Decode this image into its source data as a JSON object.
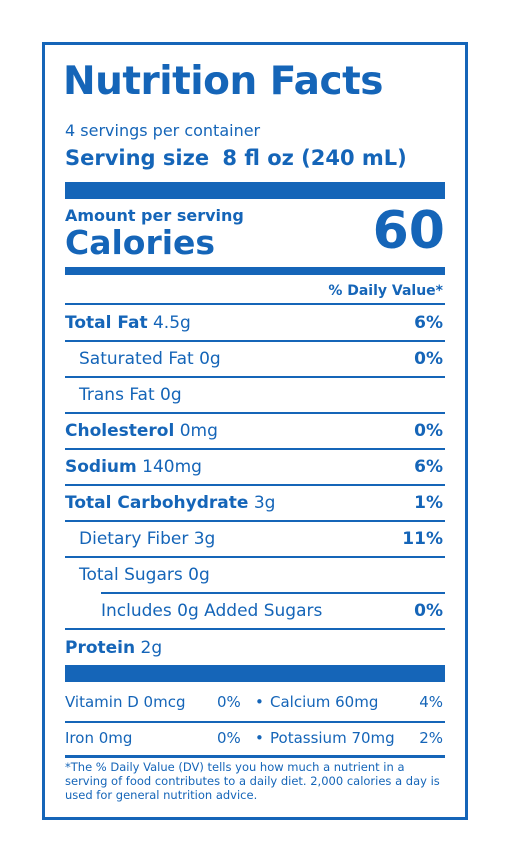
{
  "header": {
    "title": "Nutrition Facts"
  },
  "serving": {
    "per_container": "4 servings per container",
    "size_label": "Serving size",
    "size_value": "8 fl oz (240 mL)"
  },
  "calories": {
    "amount_label": "Amount per serving",
    "label": "Calories",
    "value": "60"
  },
  "daily_value_header": "% Daily Value*",
  "nutrients": {
    "total_fat": {
      "name": "Total Fat",
      "amount": "4.5g",
      "dv": "6%"
    },
    "saturated_fat": {
      "name": "Saturated Fat",
      "amount": "0g",
      "dv": "0%"
    },
    "trans_fat": {
      "name": "Trans Fat",
      "amount": "0g"
    },
    "cholesterol": {
      "name": "Cholesterol",
      "amount": "0mg",
      "dv": "0%"
    },
    "sodium": {
      "name": "Sodium",
      "amount": "140mg",
      "dv": "6%"
    },
    "total_carbohydrate": {
      "name": "Total Carbohydrate",
      "amount": "3g",
      "dv": "1%"
    },
    "dietary_fiber": {
      "name": "Dietary Fiber",
      "amount": "3g",
      "dv": "11%"
    },
    "total_sugars": {
      "name": "Total Sugars",
      "amount": "0g"
    },
    "added_sugars": {
      "name": "Includes 0g Added Sugars",
      "dv": "0%"
    },
    "protein": {
      "name": "Protein",
      "amount": "2g"
    }
  },
  "vitamins": {
    "vitamin_d": {
      "text": "Vitamin D 0mcg",
      "dv": "0%"
    },
    "calcium": {
      "text": "Calcium 60mg",
      "dv": "4%"
    },
    "iron": {
      "text": "Iron 0mg",
      "dv": "0%"
    },
    "potassium": {
      "text": "Potassium 70mg",
      "dv": "2%"
    },
    "separator": "•"
  },
  "footnote": "*The % Daily Value (DV) tells you how much a nutrient in a serving of food contributes to a daily diet. 2,000 calories a day is used for general nutrition advice.",
  "colors": {
    "ink": "#1565b8",
    "background": "#ffffff"
  }
}
